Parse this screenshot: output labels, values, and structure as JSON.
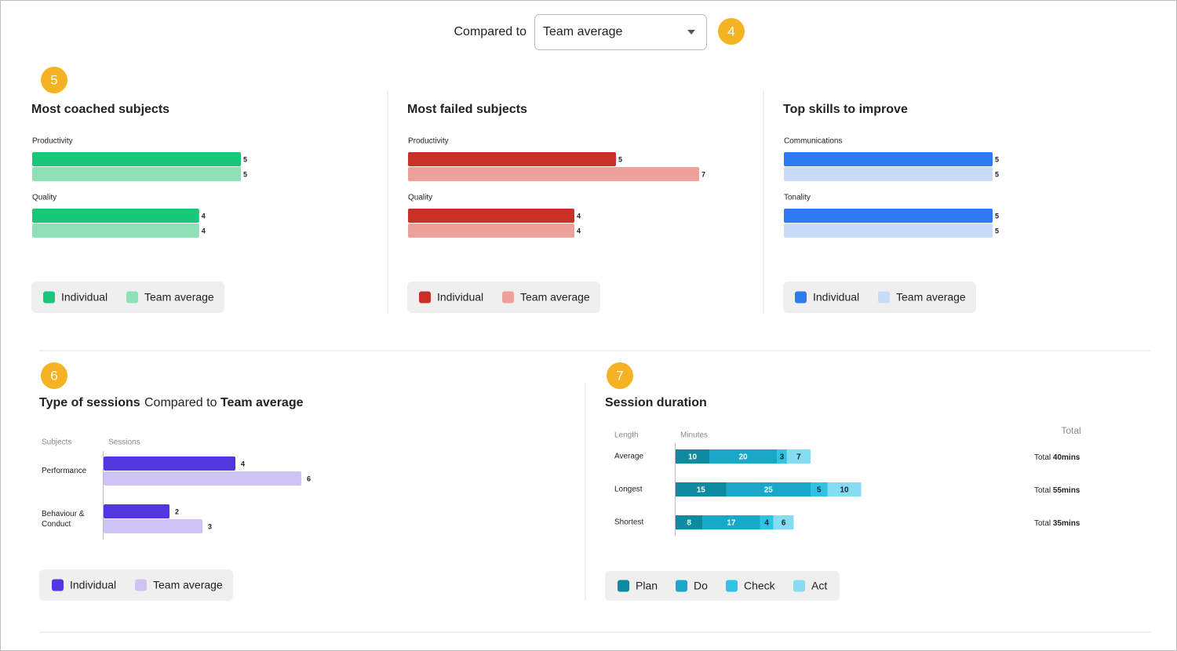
{
  "toolbar": {
    "label": "Compared to",
    "select": "Team average"
  },
  "badges": [
    4,
    5,
    6,
    7
  ],
  "chart_data": [
    {
      "type": "bar",
      "title": "Most coached subjects",
      "categories": [
        "Productivity",
        "Quality"
      ],
      "series": [
        {
          "name": "Individual",
          "color": "#18c77a",
          "values": [
            5,
            4
          ]
        },
        {
          "name": "Team average",
          "color": "#8ee0b6",
          "values": [
            5,
            4
          ]
        }
      ]
    },
    {
      "type": "bar",
      "title": "Most failed subjects",
      "categories": [
        "Productivity",
        "Quality"
      ],
      "series": [
        {
          "name": "Individual",
          "color": "#c93028",
          "values": [
            5,
            4
          ]
        },
        {
          "name": "Team average",
          "color": "#eea09b",
          "values": [
            7,
            4
          ]
        }
      ]
    },
    {
      "type": "bar",
      "title": "Top skills to improve",
      "categories": [
        "Communications",
        "Tonality"
      ],
      "series": [
        {
          "name": "Individual",
          "color": "#2b7cf0",
          "values": [
            5,
            5
          ]
        },
        {
          "name": "Team average",
          "color": "#c8dcfa",
          "values": [
            5,
            5
          ]
        }
      ]
    },
    {
      "type": "bar",
      "title": "Type of sessions",
      "subtitle_prefix": "Compared to",
      "subtitle_emphasis": "Team average",
      "category_header": "Subjects",
      "value_header": "Sessions",
      "categories": [
        "Performance",
        "Behaviour & Conduct"
      ],
      "series": [
        {
          "name": "Individual",
          "color": "#5236e0",
          "values": [
            4,
            2
          ]
        },
        {
          "name": "Team average",
          "color": "#cfc3f5",
          "values": [
            6,
            3
          ]
        }
      ]
    },
    {
      "type": "stacked_bar",
      "title": "Session duration",
      "category_header": "Length",
      "value_header": "Minutes",
      "total_header": "Total",
      "total_prefix": "Total",
      "categories": [
        "Average",
        "Longest",
        "Shortest"
      ],
      "series": [
        {
          "name": "Plan",
          "color": "#0e8aa0",
          "values": [
            10,
            15,
            8
          ]
        },
        {
          "name": "Do",
          "color": "#1aa8c9",
          "values": [
            20,
            25,
            17
          ]
        },
        {
          "name": "Check",
          "color": "#2fc4e4",
          "values": [
            3,
            5,
            4
          ]
        },
        {
          "name": "Act",
          "color": "#86dcf1",
          "values": [
            7,
            10,
            6
          ]
        }
      ],
      "totals": [
        "40mins",
        "55mins",
        "35mins"
      ]
    }
  ]
}
